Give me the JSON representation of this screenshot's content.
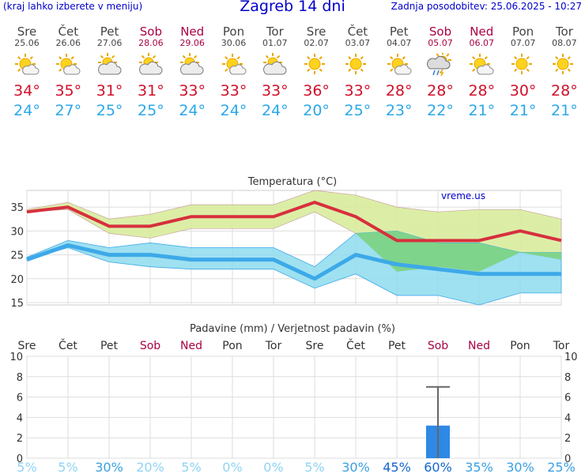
{
  "header": {
    "hint": "(kraj lahko izberete v meniju)",
    "title": "Zagreb 14 dni",
    "updated": "Zadnja posodobitev: 25.06.2025 - 10:27"
  },
  "days": [
    {
      "name": "Sre",
      "date": "25.06",
      "weekend": false,
      "icon": "sun-cloud-icon",
      "max": "34°",
      "min": "24°"
    },
    {
      "name": "Čet",
      "date": "26.06",
      "weekend": false,
      "icon": "sun-cloud-icon",
      "max": "35°",
      "min": "27°"
    },
    {
      "name": "Pet",
      "date": "27.06",
      "weekend": false,
      "icon": "cloud-sun-icon",
      "max": "31°",
      "min": "25°"
    },
    {
      "name": "Sob",
      "date": "28.06",
      "weekend": true,
      "icon": "cloud-sun-icon",
      "max": "31°",
      "min": "25°"
    },
    {
      "name": "Ned",
      "date": "29.06",
      "weekend": true,
      "icon": "cloud-sun-icon",
      "max": "33°",
      "min": "24°"
    },
    {
      "name": "Pon",
      "date": "30.06",
      "weekend": false,
      "icon": "sun-cloud-icon",
      "max": "33°",
      "min": "24°"
    },
    {
      "name": "Tor",
      "date": "01.07",
      "weekend": false,
      "icon": "cloud-sun-icon",
      "max": "33°",
      "min": "24°"
    },
    {
      "name": "Sre",
      "date": "02.07",
      "weekend": false,
      "icon": "sun-icon",
      "max": "36°",
      "min": "20°"
    },
    {
      "name": "Čet",
      "date": "03.07",
      "weekend": false,
      "icon": "sun-icon",
      "max": "33°",
      "min": "25°"
    },
    {
      "name": "Pet",
      "date": "04.07",
      "weekend": false,
      "icon": "sun-cloud-icon",
      "max": "28°",
      "min": "23°"
    },
    {
      "name": "Sob",
      "date": "05.07",
      "weekend": true,
      "icon": "storm-icon",
      "max": "28°",
      "min": "22°"
    },
    {
      "name": "Ned",
      "date": "06.07",
      "weekend": true,
      "icon": "sun-cloud-icon",
      "max": "28°",
      "min": "21°"
    },
    {
      "name": "Pon",
      "date": "07.07",
      "weekend": false,
      "icon": "sun-icon",
      "max": "30°",
      "min": "21°"
    },
    {
      "name": "Tor",
      "date": "08.07",
      "weekend": false,
      "icon": "sun-icon",
      "max": "28°",
      "min": "21°"
    }
  ],
  "colors": {
    "max_line": "#d7303e",
    "min_line": "#3da9e8",
    "max_band": "#d8ec9c",
    "min_band": "#8edcee",
    "overlap": "#7ed48a",
    "bar": "#2d88e6",
    "weekend_text": "#aa0044"
  },
  "chart_data": [
    {
      "type": "line",
      "title": "Temperatura (°C)",
      "watermark": "vreme.us",
      "categories": [
        "Sre",
        "Čet",
        "Pet",
        "Sob",
        "Ned",
        "Pon",
        "Tor",
        "Sre",
        "Čet",
        "Pet",
        "Sob",
        "Ned",
        "Pon",
        "Tor"
      ],
      "ylim": [
        14.5,
        38.5
      ],
      "yticks": [
        15,
        20,
        25,
        30,
        35
      ],
      "grid": true,
      "series": [
        {
          "role": "max",
          "values": [
            34,
            35,
            31,
            31,
            33,
            33,
            33,
            36,
            33,
            28,
            28,
            28,
            30,
            28
          ]
        },
        {
          "role": "min",
          "values": [
            24,
            27,
            25,
            25,
            24,
            24,
            24,
            20,
            25,
            23,
            22,
            21,
            21,
            21
          ]
        }
      ],
      "max_band": {
        "upper": [
          34.5,
          36,
          32.5,
          33.5,
          35.5,
          35.5,
          35.5,
          38.5,
          37.5,
          35,
          34,
          34.5,
          34.5,
          32.5
        ],
        "lower": [
          34,
          34.5,
          29.5,
          28.5,
          30.5,
          30.5,
          30.5,
          34,
          29.5,
          21.5,
          22.5,
          21.5,
          25.5,
          24
        ]
      },
      "min_band": {
        "upper": [
          24.5,
          28,
          26.5,
          27.5,
          26.5,
          26.5,
          26.5,
          22.5,
          29.5,
          30,
          27.5,
          27.5,
          25.5,
          25.5
        ],
        "lower": [
          24,
          26.5,
          23.5,
          22.5,
          22,
          22,
          22,
          18,
          21,
          16.5,
          16.5,
          14.5,
          17,
          17
        ]
      }
    },
    {
      "type": "bar",
      "title": "Padavine (mm) / Verjetnost padavin (%)",
      "categories": [
        "Sre",
        "Čet",
        "Pet",
        "Sob",
        "Ned",
        "Pon",
        "Tor",
        "Sre",
        "Čet",
        "Pet",
        "Sob",
        "Ned",
        "Pon",
        "Tor"
      ],
      "weekend": [
        false,
        false,
        false,
        true,
        true,
        false,
        false,
        false,
        false,
        false,
        true,
        true,
        false,
        false
      ],
      "ylim": [
        0,
        10
      ],
      "yticks": [
        0,
        2,
        4,
        6,
        8,
        10
      ],
      "values": [
        0,
        0,
        0,
        0,
        0,
        0,
        0,
        0,
        0,
        0,
        3.2,
        0,
        0,
        0
      ],
      "error_high": [
        0,
        0,
        0,
        0,
        0,
        0,
        0,
        0,
        0,
        0,
        7,
        0,
        0,
        0
      ],
      "probability": [
        "5%",
        "5%",
        "30%",
        "20%",
        "5%",
        "0%",
        "0%",
        "5%",
        "30%",
        "45%",
        "60%",
        "35%",
        "30%",
        "25%"
      ],
      "probability_values": [
        5,
        5,
        30,
        20,
        5,
        0,
        0,
        5,
        30,
        45,
        60,
        35,
        30,
        25
      ]
    }
  ]
}
